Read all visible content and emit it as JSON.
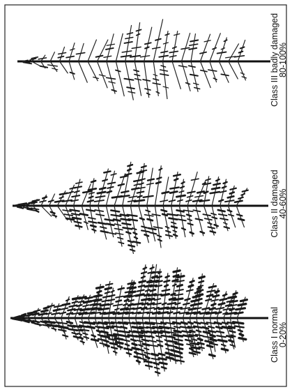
{
  "panels": [
    {
      "label": "Class I normal",
      "range": "0-20%"
    },
    {
      "label": "Class II damaged",
      "range": "40-60%"
    },
    {
      "label": "Class III badly damaged",
      "range": "80-100%"
    }
  ]
}
